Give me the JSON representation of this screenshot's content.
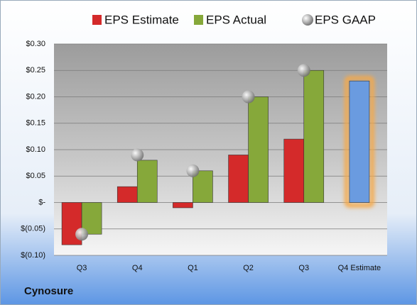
{
  "chart_data": {
    "type": "bar",
    "company": "Cynosure",
    "categories": [
      "Q3",
      "Q4",
      "Q1",
      "Q2",
      "Q3",
      "Q4 Estimate"
    ],
    "series": [
      {
        "name": "EPS Estimate",
        "color": "#d42a2a",
        "values": [
          -0.08,
          0.03,
          -0.01,
          0.09,
          0.12,
          0.23
        ]
      },
      {
        "name": "EPS Actual",
        "color": "#86a83a",
        "values": [
          -0.06,
          0.08,
          0.06,
          0.2,
          0.25,
          null
        ]
      },
      {
        "name": "EPS GAAP",
        "color": "#b0b0b0",
        "values": [
          -0.06,
          0.09,
          0.06,
          0.2,
          0.25,
          null
        ],
        "marker": "sphere"
      }
    ],
    "highlight": {
      "index": 5,
      "color": "#6a9be0",
      "glow": "#f5a94a"
    },
    "ylim": [
      -0.1,
      0.3
    ],
    "yticks": [
      {
        "value": -0.1,
        "label": "$(0.10)"
      },
      {
        "value": -0.05,
        "label": "$(0.05)"
      },
      {
        "value": 0,
        "label": "$-"
      },
      {
        "value": 0.05,
        "label": "$0.05"
      },
      {
        "value": 0.1,
        "label": "$0.10"
      },
      {
        "value": 0.15,
        "label": "$0.15"
      },
      {
        "value": 0.2,
        "label": "$0.20"
      },
      {
        "value": 0.25,
        "label": "$0.25"
      },
      {
        "value": 0.3,
        "label": "$0.30"
      }
    ],
    "grid": true
  }
}
